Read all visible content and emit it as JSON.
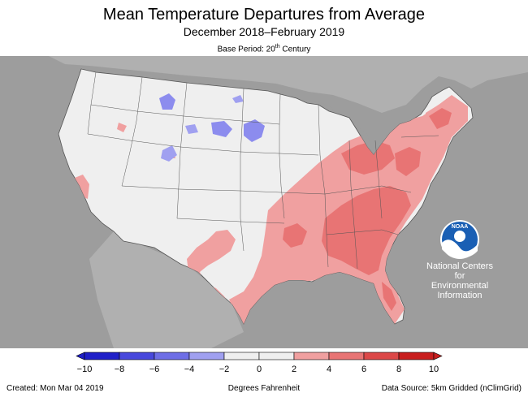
{
  "header": {
    "title": "Mean Temperature Departures from Average",
    "subtitle": "December 2018–February 2019",
    "base_period_prefix": "Base Period: 20",
    "base_period_sup": "th",
    "base_period_suffix": " Century"
  },
  "logo": {
    "name": "NOAA",
    "icon": "noaa-logo-icon"
  },
  "agency": {
    "line1": "National Centers for",
    "line2": "Environmental",
    "line3": "Information"
  },
  "legend": {
    "ticks": [
      "−10",
      "−8",
      "−6",
      "−4",
      "−2",
      "0",
      "2",
      "4",
      "6",
      "8",
      "10"
    ],
    "bins": [
      {
        "range": [
          -10,
          -8
        ],
        "color": "#2020c8"
      },
      {
        "range": [
          -8,
          -6
        ],
        "color": "#4848dc"
      },
      {
        "range": [
          -6,
          -4
        ],
        "color": "#6e6ee6"
      },
      {
        "range": [
          -4,
          -2
        ],
        "color": "#a0a0f0"
      },
      {
        "range": [
          -2,
          0
        ],
        "color": "#efefef"
      },
      {
        "range": [
          0,
          2
        ],
        "color": "#efefef"
      },
      {
        "range": [
          2,
          4
        ],
        "color": "#f0a0a0"
      },
      {
        "range": [
          4,
          6
        ],
        "color": "#e87474"
      },
      {
        "range": [
          6,
          8
        ],
        "color": "#dc4848"
      },
      {
        "range": [
          8,
          10
        ],
        "color": "#c81e1e"
      }
    ]
  },
  "footer": {
    "created": "Created: Mon Mar 04 2019",
    "units": "Degrees Fahrenheit",
    "source": "Data Source: 5km Gridded (nClimGrid)"
  },
  "colors": {
    "background_gray": "#9d9d9d",
    "land_neutral": "#efefef",
    "warm_light": "#f0a0a0",
    "warm_mid": "#e87474",
    "cool_light": "#a0a0f0",
    "cool_mid": "#7878e8",
    "noaa_blue": "#1a5fb4"
  }
}
